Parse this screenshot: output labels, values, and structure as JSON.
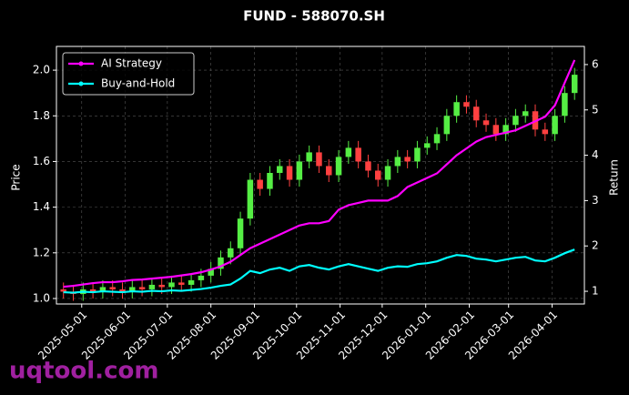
{
  "chart_data": {
    "type": "candlestick",
    "title": "FUND - 588070.SH",
    "ylabel": "Price",
    "y2label": "Return",
    "watermark": "uqtool.com",
    "x": [
      "2025-04-18",
      "2025-04-25",
      "2025-05-02",
      "2025-05-09",
      "2025-05-16",
      "2025-05-23",
      "2025-05-30",
      "2025-06-06",
      "2025-06-13",
      "2025-06-20",
      "2025-06-27",
      "2025-07-04",
      "2025-07-11",
      "2025-07-18",
      "2025-07-25",
      "2025-08-01",
      "2025-08-08",
      "2025-08-15",
      "2025-08-22",
      "2025-08-29",
      "2025-09-05",
      "2025-09-12",
      "2025-09-19",
      "2025-09-26",
      "2025-10-03",
      "2025-10-10",
      "2025-10-17",
      "2025-10-24",
      "2025-10-31",
      "2025-11-07",
      "2025-11-14",
      "2025-11-21",
      "2025-11-28",
      "2025-12-05",
      "2025-12-12",
      "2025-12-19",
      "2025-12-26",
      "2026-01-02",
      "2026-01-09",
      "2026-01-16",
      "2026-01-23",
      "2026-01-30",
      "2026-02-06",
      "2026-02-13",
      "2026-02-20",
      "2026-02-27",
      "2026-03-06",
      "2026-03-13",
      "2026-03-20",
      "2026-03-27",
      "2026-04-03",
      "2026-04-10",
      "2026-04-17"
    ],
    "open": [
      1.04,
      1.03,
      1.02,
      1.04,
      1.03,
      1.05,
      1.04,
      1.03,
      1.05,
      1.04,
      1.06,
      1.05,
      1.07,
      1.06,
      1.08,
      1.1,
      1.13,
      1.18,
      1.22,
      1.35,
      1.52,
      1.48,
      1.55,
      1.58,
      1.52,
      1.6,
      1.64,
      1.58,
      1.54,
      1.62,
      1.66,
      1.6,
      1.56,
      1.52,
      1.58,
      1.62,
      1.6,
      1.66,
      1.68,
      1.72,
      1.8,
      1.86,
      1.84,
      1.78,
      1.76,
      1.72,
      1.76,
      1.8,
      1.82,
      1.74,
      1.72,
      1.8,
      1.9
    ],
    "high": [
      1.07,
      1.06,
      1.07,
      1.07,
      1.08,
      1.08,
      1.07,
      1.08,
      1.08,
      1.09,
      1.09,
      1.1,
      1.1,
      1.11,
      1.13,
      1.16,
      1.21,
      1.25,
      1.38,
      1.55,
      1.55,
      1.58,
      1.61,
      1.61,
      1.63,
      1.67,
      1.67,
      1.61,
      1.65,
      1.69,
      1.69,
      1.63,
      1.59,
      1.61,
      1.65,
      1.65,
      1.69,
      1.71,
      1.75,
      1.83,
      1.89,
      1.89,
      1.87,
      1.81,
      1.79,
      1.79,
      1.83,
      1.85,
      1.85,
      1.77,
      1.83,
      1.93,
      2.01
    ],
    "low": [
      1.0,
      0.99,
      0.99,
      1.0,
      1.0,
      1.01,
      1.0,
      1.0,
      1.01,
      1.01,
      1.02,
      1.02,
      1.03,
      1.03,
      1.05,
      1.07,
      1.1,
      1.15,
      1.19,
      1.32,
      1.45,
      1.45,
      1.52,
      1.49,
      1.49,
      1.57,
      1.55,
      1.51,
      1.51,
      1.59,
      1.57,
      1.53,
      1.49,
      1.49,
      1.55,
      1.57,
      1.57,
      1.63,
      1.65,
      1.69,
      1.77,
      1.81,
      1.75,
      1.73,
      1.69,
      1.69,
      1.73,
      1.77,
      1.71,
      1.69,
      1.69,
      1.77,
      1.87
    ],
    "close": [
      1.03,
      1.02,
      1.04,
      1.03,
      1.05,
      1.04,
      1.03,
      1.05,
      1.04,
      1.06,
      1.05,
      1.07,
      1.06,
      1.08,
      1.1,
      1.13,
      1.18,
      1.22,
      1.35,
      1.52,
      1.48,
      1.55,
      1.58,
      1.52,
      1.6,
      1.64,
      1.58,
      1.54,
      1.62,
      1.66,
      1.6,
      1.56,
      1.52,
      1.58,
      1.62,
      1.6,
      1.66,
      1.68,
      1.72,
      1.8,
      1.86,
      1.84,
      1.78,
      1.76,
      1.72,
      1.76,
      1.8,
      1.82,
      1.74,
      1.72,
      1.8,
      1.9,
      1.98
    ],
    "up_color": "#55ee44",
    "down_color": "#ff4040",
    "series": [
      {
        "name": "AI Strategy",
        "color": "#ff00ff",
        "axis": "y2",
        "values": [
          1.1,
          1.12,
          1.15,
          1.18,
          1.2,
          1.2,
          1.22,
          1.25,
          1.26,
          1.28,
          1.3,
          1.32,
          1.35,
          1.38,
          1.42,
          1.48,
          1.55,
          1.65,
          1.8,
          1.95,
          2.05,
          2.15,
          2.25,
          2.35,
          2.45,
          2.5,
          2.5,
          2.55,
          2.8,
          2.9,
          2.95,
          3.0,
          3.0,
          3.0,
          3.1,
          3.3,
          3.4,
          3.5,
          3.6,
          3.8,
          4.0,
          4.15,
          4.3,
          4.4,
          4.45,
          4.5,
          4.55,
          4.65,
          4.75,
          4.85,
          5.1,
          5.6,
          6.1
        ]
      },
      {
        "name": "Buy-and-Hold",
        "color": "#00ffff",
        "axis": "y2",
        "values": [
          0.98,
          0.97,
          0.99,
          0.98,
          1.0,
          0.99,
          0.98,
          1.0,
          0.99,
          1.01,
          1.0,
          1.02,
          1.01,
          1.03,
          1.05,
          1.08,
          1.12,
          1.15,
          1.28,
          1.45,
          1.4,
          1.48,
          1.52,
          1.45,
          1.55,
          1.58,
          1.52,
          1.48,
          1.55,
          1.6,
          1.55,
          1.5,
          1.45,
          1.52,
          1.55,
          1.54,
          1.6,
          1.62,
          1.66,
          1.74,
          1.8,
          1.78,
          1.72,
          1.7,
          1.66,
          1.7,
          1.74,
          1.76,
          1.68,
          1.66,
          1.74,
          1.84,
          1.92
        ]
      }
    ],
    "xlim": [
      "2025-04-13",
      "2026-04-24"
    ],
    "xticks": [
      "2025-05-01",
      "2025-06-01",
      "2025-07-01",
      "2025-08-01",
      "2025-09-01",
      "2025-10-01",
      "2025-11-01",
      "2025-12-01",
      "2026-01-01",
      "2026-02-01",
      "2026-03-01",
      "2026-04-01"
    ],
    "ylim": [
      0.976,
      2.104
    ],
    "yticks": [
      {
        "value": 1,
        "label": "1.0"
      },
      1.2,
      1.4,
      1.6,
      1.8,
      {
        "value": 2,
        "label": "2.0"
      }
    ],
    "y2lim": [
      0.72,
      6.4
    ],
    "y2ticks": [
      1,
      2,
      3,
      4,
      5,
      6
    ],
    "grid": true,
    "legend": "upper left"
  }
}
